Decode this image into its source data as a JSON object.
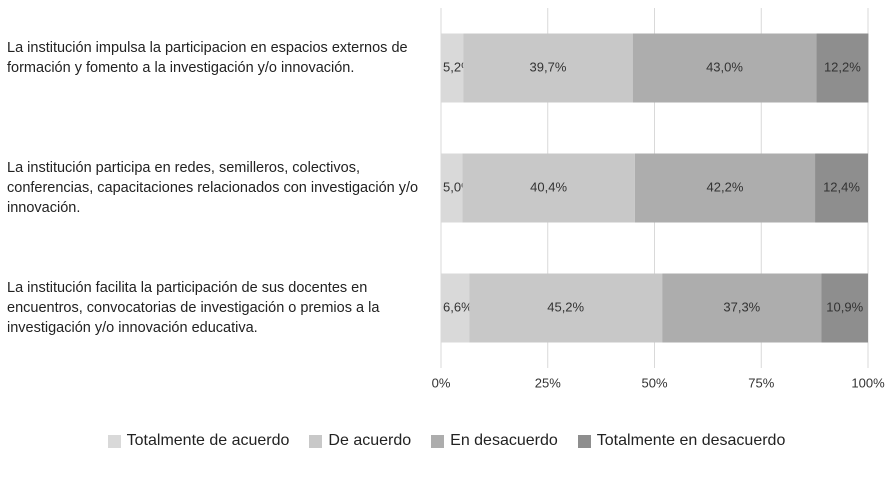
{
  "chart_data": {
    "type": "stacked_bar_horizontal",
    "categories": [
      "La institución impulsa la participacion en espacios externos de formación y fomento a la investigación y/o innovación.",
      "La institución participa en redes, semilleros, colectivos, conferencias, capacitaciones relacionados con investigación y/o innovación.",
      "La institución facilita la participación de sus docentes en encuentros, convocatorias de investigación o premios a la investigación y/o innovación educativa."
    ],
    "series": [
      {
        "name": "Totalmente de acuerdo",
        "color": "#d9d9d9",
        "values": [
          5.2,
          5.0,
          6.6
        ],
        "value_labels": [
          "5,2%",
          "5,0%",
          "6,6%"
        ]
      },
      {
        "name": "De acuerdo",
        "color": "#c8c8c8",
        "values": [
          39.7,
          40.4,
          45.2
        ],
        "value_labels": [
          "39,7%",
          "40,4%",
          "45,2%"
        ]
      },
      {
        "name": "En desacuerdo",
        "color": "#adadad",
        "values": [
          43.0,
          42.2,
          37.3
        ],
        "value_labels": [
          "43,0%",
          "42,2%",
          "37,3%"
        ]
      },
      {
        "name": "Totalmente en desacuerdo",
        "color": "#8e8e8e",
        "values": [
          12.2,
          12.4,
          10.9
        ],
        "value_labels": [
          "12,2%",
          "12,4%",
          "10,9%"
        ]
      }
    ],
    "xlim": [
      0,
      100
    ],
    "xticks": [
      {
        "value": 0,
        "label": "0%"
      },
      {
        "value": 25,
        "label": "25%"
      },
      {
        "value": 50,
        "label": "50%"
      },
      {
        "value": 75,
        "label": "75%"
      },
      {
        "value": 100,
        "label": "100%"
      }
    ],
    "grid": true,
    "legend": "bottom"
  }
}
